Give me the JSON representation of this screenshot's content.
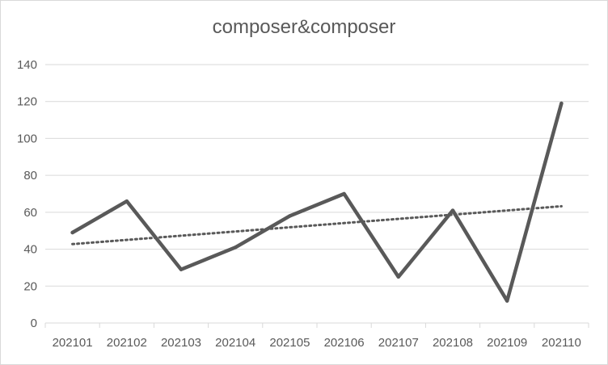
{
  "chart_data": {
    "type": "line",
    "title": "composer&composer",
    "xlabel": "",
    "ylabel": "",
    "categories": [
      "202101",
      "202102",
      "202103",
      "202104",
      "202105",
      "202106",
      "202107",
      "202108",
      "202109",
      "202110"
    ],
    "series": [
      {
        "values": [
          49,
          66,
          29,
          41,
          58,
          70,
          25,
          61,
          12,
          119
        ],
        "color": "#595959"
      }
    ],
    "trendline": {
      "type": "linear",
      "style": "dotted",
      "color": "#595959"
    },
    "ylim": [
      0,
      140
    ],
    "yticks": [
      0,
      20,
      40,
      60,
      80,
      100,
      120,
      140
    ],
    "grid": true,
    "legend": "none"
  }
}
